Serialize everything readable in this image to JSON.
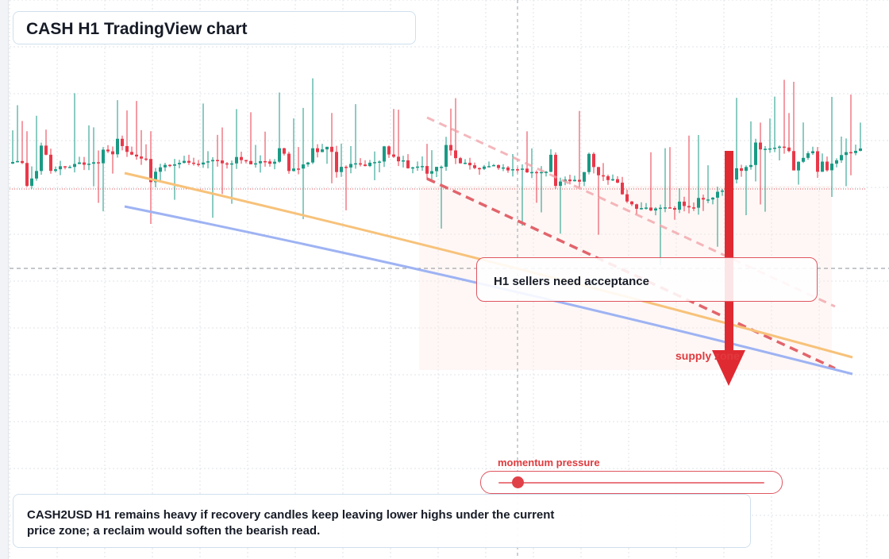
{
  "title": "CASH H1 TradingView chart",
  "callout": "H1 sellers need acceptance",
  "zone_label": "supply zone",
  "momentum": {
    "label": "momentum pressure",
    "level": 0.07
  },
  "note": "CASH2USD H1 remains heavy if recovery candles keep leaving lower highs under the current price zone; a reclaim would soften the bearish read.",
  "colors": {
    "bull": "#1a9a85",
    "bear": "#e8394a",
    "accent": "#e03a3e",
    "ma_fast": "#f7c27a",
    "ma_slow": "#9eb3f3",
    "grid": "#dfe3e8"
  },
  "chart_data": {
    "type": "candlestick",
    "title": "CASH H1 TradingView chart",
    "grid": true,
    "candles_ohlc": [],
    "moving_averages": [
      {
        "color": "#f7c27a"
      },
      {
        "color": "#9eb3f3"
      }
    ],
    "annotations": [
      "H1 sellers need acceptance",
      "supply zone",
      "momentum pressure"
    ],
    "bias": "bearish"
  }
}
